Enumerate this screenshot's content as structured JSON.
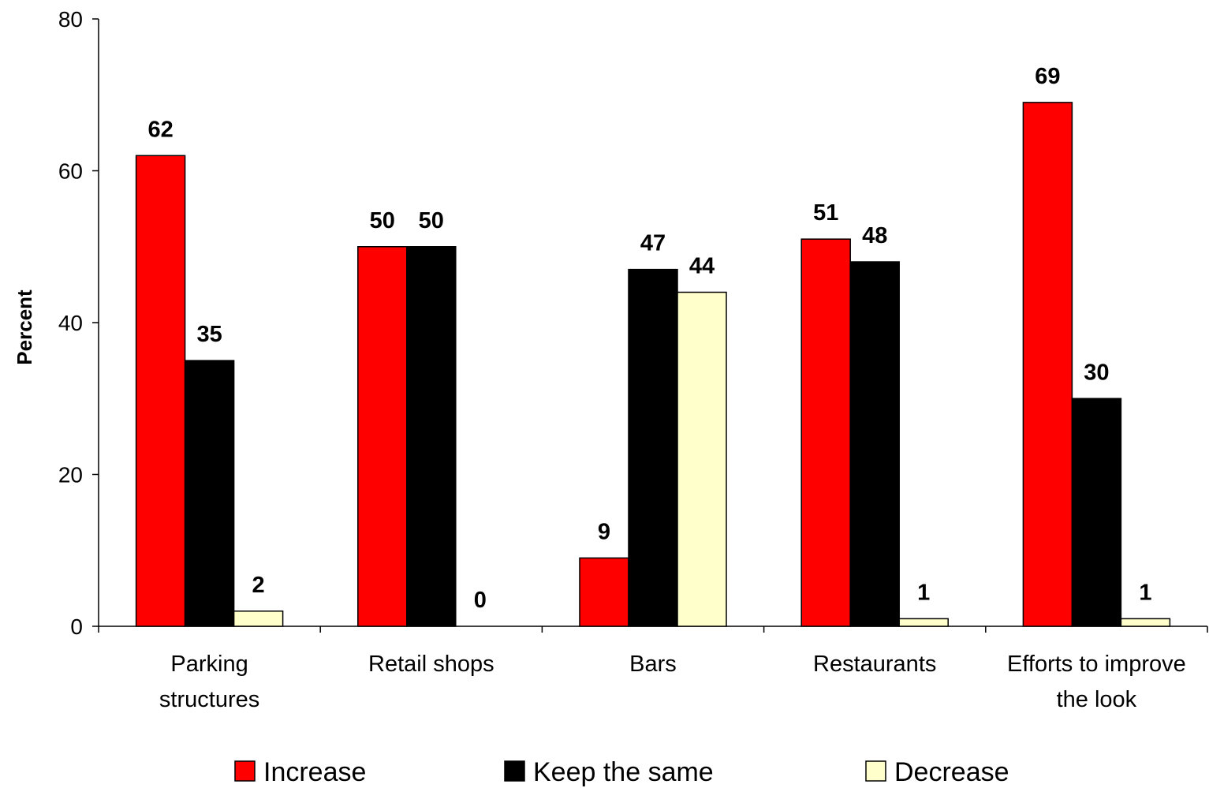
{
  "chart_data": {
    "type": "bar",
    "categories": [
      [
        "Parking",
        "structures"
      ],
      [
        "Retail shops"
      ],
      [
        "Bars"
      ],
      [
        "Restaurants"
      ],
      [
        "Efforts to improve",
        "the look"
      ]
    ],
    "series": [
      {
        "name": "Increase",
        "color": "#ff0000",
        "values": [
          62,
          50,
          9,
          51,
          69
        ],
        "labels": [
          "62",
          "50",
          "9",
          "51",
          "69"
        ]
      },
      {
        "name": "Keep the same",
        "color": "#000000",
        "values": [
          35,
          50,
          47,
          48,
          30
        ],
        "labels": [
          "35",
          "50",
          "47",
          "48",
          "30"
        ]
      },
      {
        "name": "Decrease",
        "color": "#ffffcc",
        "values": [
          2,
          0,
          44,
          1,
          1
        ],
        "labels": [
          "2",
          "0",
          "44",
          "1",
          "1"
        ]
      }
    ],
    "ylabel": "Percent",
    "ylim": [
      0,
      80
    ],
    "yticks": [
      0,
      20,
      40,
      60,
      80
    ],
    "grid": false,
    "legend": "bottom"
  }
}
